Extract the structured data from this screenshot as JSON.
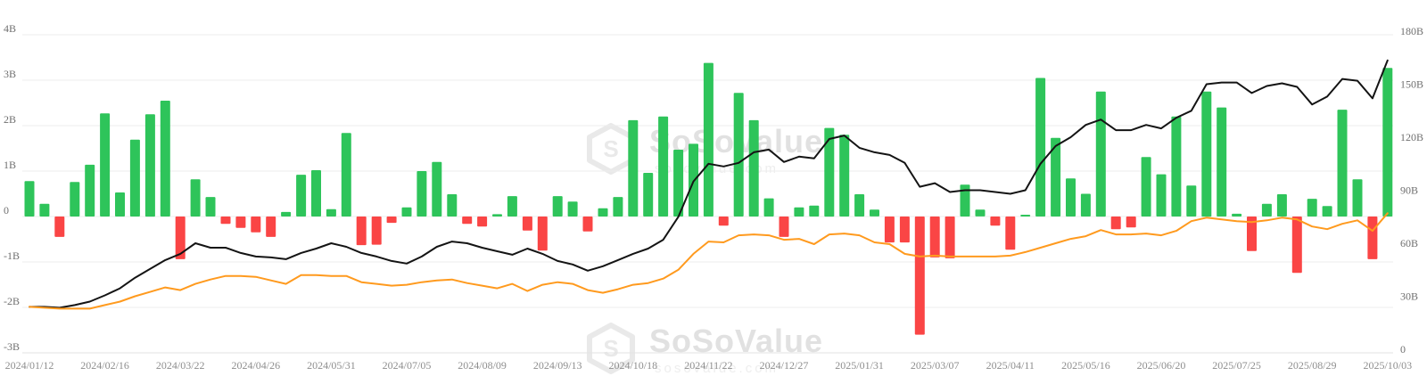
{
  "watermark": {
    "brand": "SoSoValue",
    "domain": "sosovalue.com"
  },
  "chart_data": {
    "type": "bar",
    "title": "",
    "legend": "none",
    "grid": true,
    "x_tick_labels": [
      "2024/01/12",
      "2024/02/16",
      "2024/03/22",
      "2024/04/26",
      "2024/05/31",
      "2024/07/05",
      "2024/08/09",
      "2024/09/13",
      "2024/10/18",
      "2024/11/22",
      "2024/12/27",
      "2025/01/31",
      "2025/03/07",
      "2025/04/11",
      "2025/05/16",
      "2025/06/20",
      "2025/07/25",
      "2025/08/29",
      "2025/10/03"
    ],
    "weeks": 91,
    "left_axis": {
      "labels": [
        "4B",
        "3B",
        "2B",
        "1B",
        "0",
        "-1B",
        "-2B",
        "-3B"
      ],
      "min": -3,
      "max": 4,
      "unit": "B"
    },
    "right_axis": {
      "labels": [
        "180B",
        "150B",
        "120B",
        "90B",
        "60B",
        "30B",
        "0"
      ],
      "min": 0,
      "max": 180,
      "unit": "B"
    },
    "bars": {
      "name": "weekly-net-flow",
      "unit": "B",
      "values": [
        0.78,
        0.28,
        -0.45,
        0.76,
        1.14,
        2.27,
        0.53,
        1.69,
        2.25,
        2.55,
        -0.94,
        0.82,
        0.43,
        -0.16,
        -0.25,
        -0.35,
        -0.45,
        0.1,
        0.92,
        1.02,
        0.16,
        1.84,
        -0.63,
        -0.62,
        -0.14,
        0.2,
        1.0,
        1.2,
        0.49,
        -0.16,
        -0.22,
        0.05,
        0.45,
        -0.31,
        -0.75,
        0.45,
        0.33,
        -0.33,
        0.18,
        0.43,
        2.12,
        0.96,
        2.2,
        1.47,
        1.6,
        3.38,
        -0.2,
        2.72,
        2.12,
        0.4,
        -0.45,
        0.2,
        0.24,
        1.95,
        1.8,
        0.49,
        0.15,
        -0.57,
        -0.57,
        -2.6,
        -0.9,
        -0.92,
        0.7,
        0.15,
        -0.2,
        -0.73,
        0.04,
        3.05,
        1.73,
        0.84,
        0.5,
        2.75,
        -0.28,
        -0.24,
        1.31,
        0.93,
        2.2,
        0.68,
        2.75,
        2.4,
        0.06,
        -0.76,
        0.28,
        0.49,
        -1.24,
        0.39,
        0.23,
        2.35,
        0.82,
        -0.94,
        3.27
      ]
    },
    "series": [
      {
        "name": "black-line",
        "axis": "right",
        "color": "#141414",
        "values": [
          26,
          26,
          25.5,
          27,
          29,
          32.5,
          36.5,
          42.5,
          47.5,
          52.5,
          56,
          62,
          59.5,
          59.5,
          56.5,
          54.5,
          54,
          53,
          56.5,
          59,
          62,
          60,
          56.5,
          54.5,
          52,
          50.5,
          54.5,
          60,
          63,
          62,
          59.5,
          57.5,
          55.5,
          59,
          56,
          52,
          50,
          46.5,
          49,
          52.5,
          56,
          59,
          64,
          77,
          97,
          107,
          105.5,
          107.5,
          113.5,
          115,
          108,
          111,
          110,
          121,
          123,
          116,
          113.5,
          112,
          107.5,
          94,
          96,
          91,
          92,
          92,
          91,
          90,
          92,
          107,
          117,
          122,
          129,
          132,
          126,
          126,
          129,
          127,
          133,
          137,
          152,
          153,
          153,
          147,
          151,
          152.5,
          150.5,
          140.5,
          145,
          155,
          154,
          144,
          165.5
        ]
      },
      {
        "name": "orange-line",
        "axis": "right",
        "color": "#ff9a1e",
        "values": [
          26,
          25.5,
          25,
          25,
          25,
          27,
          29,
          32,
          34.5,
          37,
          35.5,
          39,
          41.5,
          43.5,
          43.5,
          43,
          41,
          39,
          44,
          44,
          43.5,
          43.5,
          40,
          39,
          38,
          38.5,
          40,
          41,
          41.5,
          39.5,
          38,
          36.5,
          39,
          35,
          38.5,
          40,
          39,
          35.5,
          34,
          36,
          38.5,
          39.5,
          42,
          47,
          56,
          63,
          62.5,
          66.5,
          67,
          66.5,
          64,
          64.5,
          61.5,
          67,
          67.5,
          66.5,
          62.5,
          61.5,
          56,
          54.5,
          55,
          54.5,
          54.5,
          54.5,
          54.5,
          55,
          57,
          59.5,
          62,
          64.5,
          66,
          69.5,
          67,
          67,
          67.5,
          66.5,
          69,
          74.5,
          76.5,
          75.5,
          74.5,
          74,
          75,
          76.5,
          75.5,
          71.5,
          70,
          73,
          75,
          69,
          79
        ]
      }
    ],
    "colors": {
      "positive": "#2ec45a",
      "negative": "#fa4545",
      "grid": "#ededed",
      "grid_bottom": "#e3e3e3"
    }
  }
}
